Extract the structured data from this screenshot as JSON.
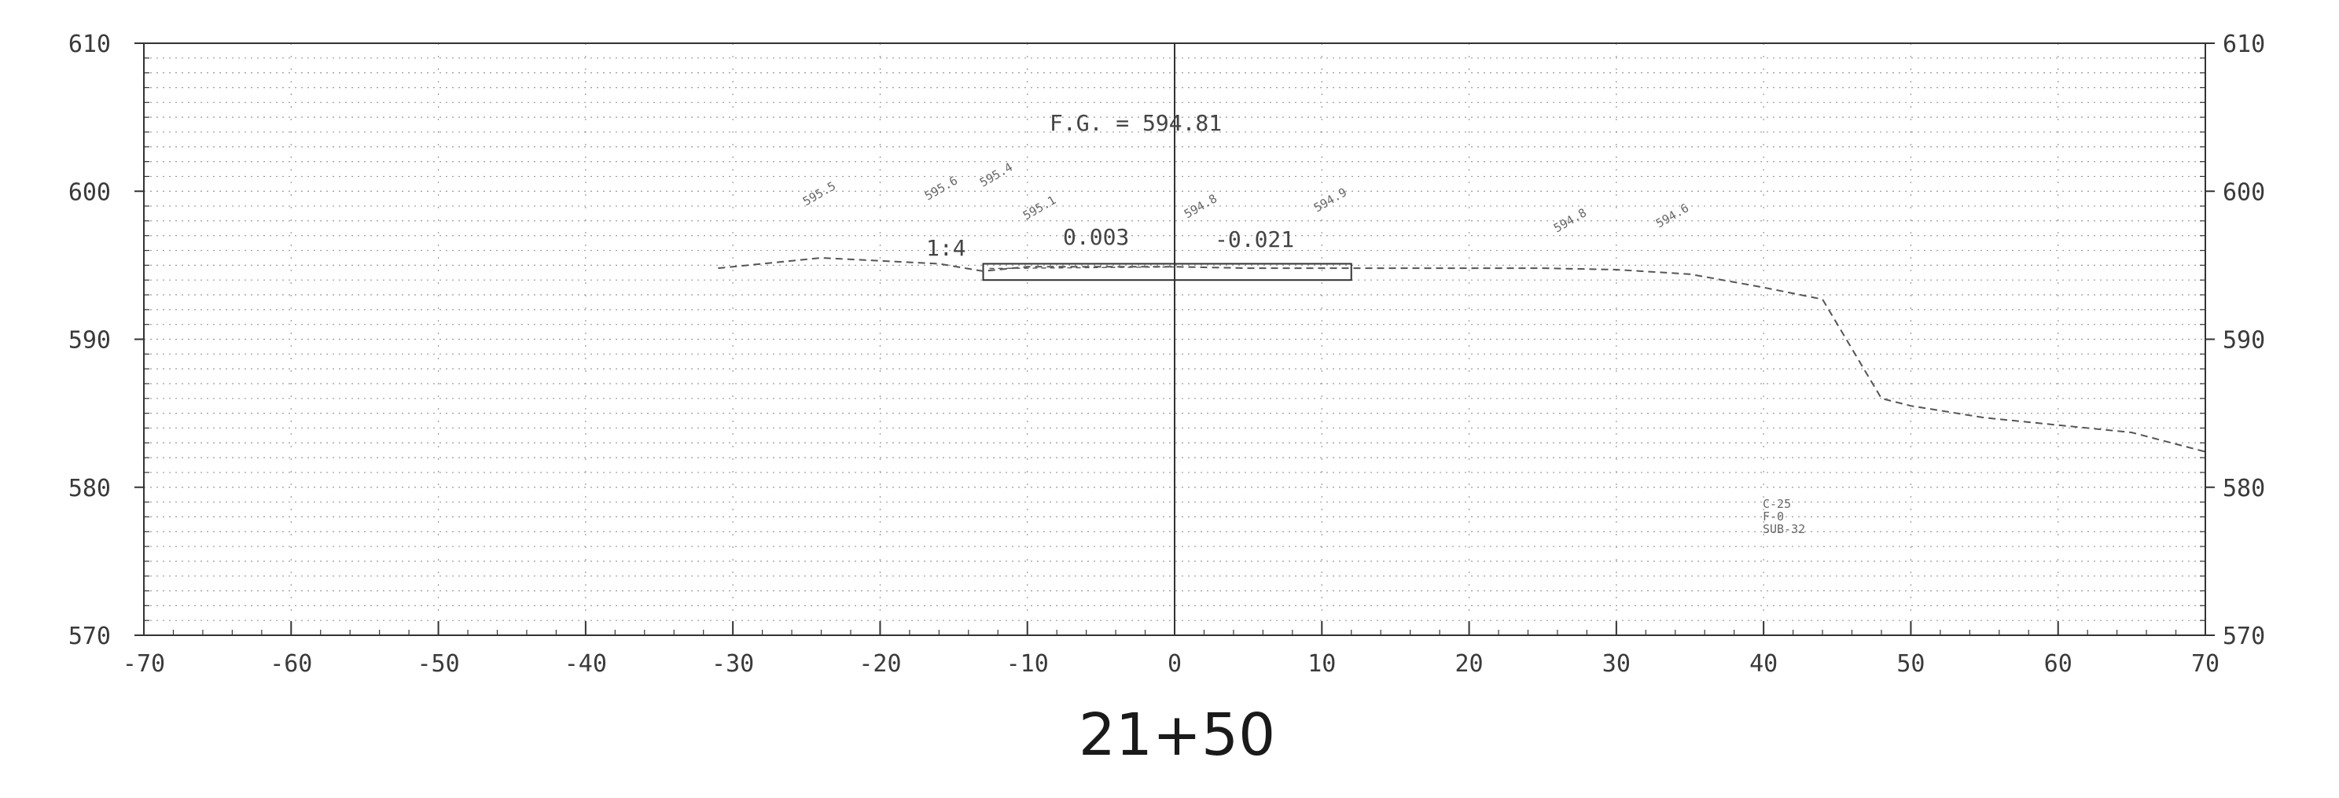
{
  "y_axis_left": [
    "610",
    "600",
    "590",
    "580",
    "570"
  ],
  "y_axis_right": [
    "610",
    "600",
    "590",
    "580",
    "570"
  ],
  "x_axis": [
    "-70",
    "-60",
    "-50",
    "-40",
    "-30",
    "-20",
    "-10",
    "0",
    "10",
    "20",
    "30",
    "40",
    "50",
    "60",
    "70"
  ],
  "station_label": "21+50",
  "fg_label": "F.G. = 594.81",
  "slope_left": "0.003",
  "slope_right": "-0.021",
  "slope_ratio": "1:4",
  "soil_note": [
    "C-25",
    "F-0",
    "SUB-32"
  ],
  "point_labels": [
    "595.5",
    "595.6",
    "595.4",
    "595.1",
    "594.8",
    "594.9",
    "594.8",
    "594.6"
  ],
  "colors": {
    "line": "#333333",
    "grid_dot": "#9a9a9a",
    "ground": "#555555"
  },
  "chart_data": {
    "type": "line",
    "xlim": [
      -70,
      70
    ],
    "ylim": [
      570,
      610
    ],
    "x_ticks": [
      -70,
      -60,
      -50,
      -40,
      -30,
      -20,
      -10,
      0,
      10,
      20,
      30,
      40,
      50,
      60,
      70
    ],
    "y_ticks": [
      570,
      580,
      590,
      600,
      610
    ],
    "grid": true,
    "series": [
      {
        "x": [
          -31,
          -24,
          -20,
          -16,
          -13,
          -10,
          -5,
          0,
          5,
          10,
          15,
          20,
          25,
          30,
          35,
          40,
          44,
          48,
          50,
          55,
          60,
          65,
          70
        ],
        "y": [
          594.8,
          595.5,
          595.3,
          595.1,
          594.6,
          594.9,
          594.9,
          594.9,
          594.8,
          594.8,
          594.8,
          594.8,
          594.8,
          594.7,
          594.4,
          593.5,
          592.7,
          586.0,
          585.5,
          584.7,
          584.2,
          583.7,
          582.4
        ]
      }
    ],
    "template": {
      "x": [
        -13,
        12
      ],
      "y": [
        594.0,
        595.1
      ]
    }
  }
}
